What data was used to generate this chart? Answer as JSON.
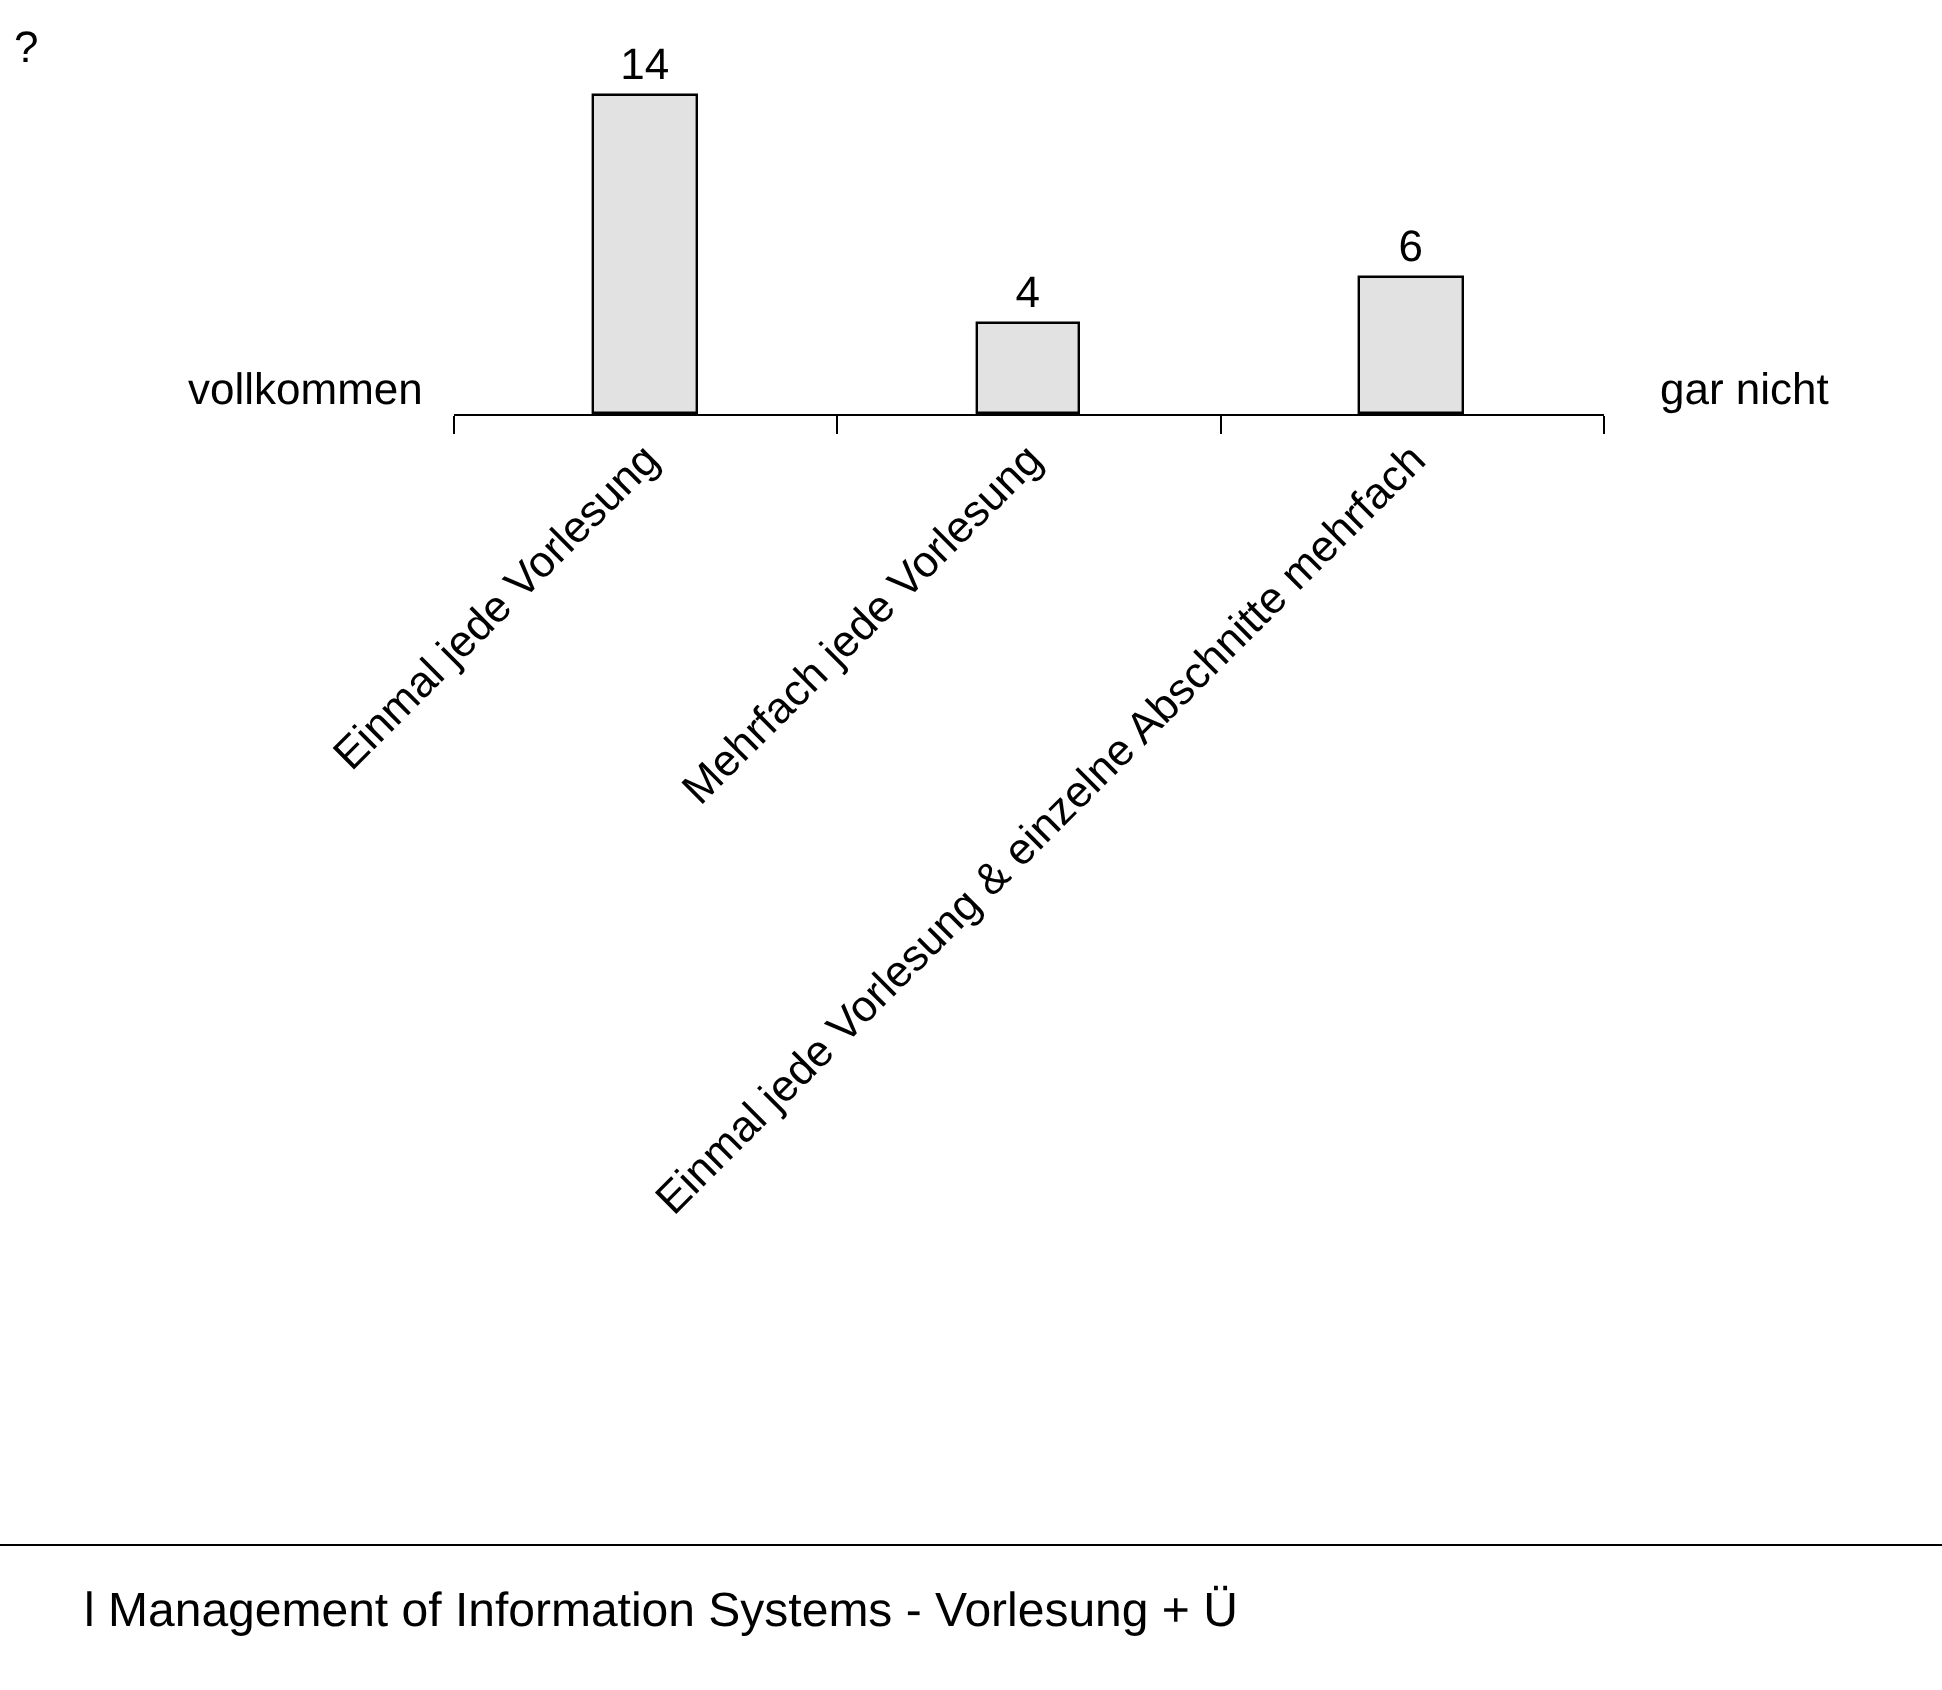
{
  "chart_data": {
    "type": "bar",
    "categories": [
      "Einmal jede Vorlesung",
      "Mehrfach jede Vorlesung",
      "Einmal jede Vorlesung & einzelne Abschnitte mehrfach"
    ],
    "values": [
      14,
      4,
      6
    ],
    "color": "#e2e2e2",
    "data_labels": true,
    "grid": false,
    "legend": false,
    "tick_labels": "x",
    "annotations": [
      "?",
      "vollkommen",
      "gar nicht",
      "l Management of Information Systems - Vorlesung + Ü"
    ]
  }
}
